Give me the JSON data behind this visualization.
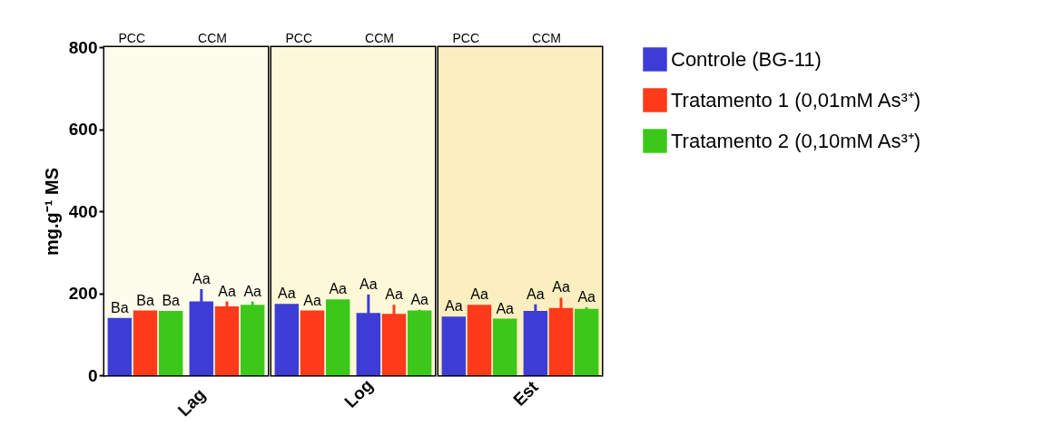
{
  "chart_data": [
    {
      "type": "bar",
      "xlabel": "Lag",
      "ylabel": "mg.g⁻¹ MS",
      "categories": [
        "PCC",
        "CCM"
      ],
      "ylim": [
        0,
        800
      ],
      "yticks": [
        0,
        200,
        400,
        600,
        800
      ],
      "bands": [
        {
          "axis": "y",
          "from": 0,
          "to": 800,
          "color": "#fefdeb"
        }
      ],
      "series": [
        {
          "color": "#3d3dd6",
          "values": [
            140,
            180
          ],
          "errors": [
            null,
            30
          ],
          "value_labels": [
            "Ba",
            "Aa"
          ]
        },
        {
          "color": "#ff3a1a",
          "values": [
            158,
            168
          ],
          "errors": [
            null,
            12
          ],
          "value_labels": [
            "Ba",
            "Aa"
          ]
        },
        {
          "color": "#3cc81a",
          "values": [
            157,
            172
          ],
          "errors": [
            null,
            8
          ],
          "value_labels": [
            "Ba",
            "Aa"
          ]
        }
      ]
    },
    {
      "type": "bar",
      "xlabel": "Log",
      "categories": [
        "PCC",
        "CCM"
      ],
      "ylim": [
        0,
        800
      ],
      "yticks": [
        0,
        200,
        400,
        600,
        800
      ],
      "tick_labels": "x",
      "bands": [
        {
          "axis": "y",
          "from": 0,
          "to": 800,
          "color": "#fdf9d8"
        }
      ],
      "series": [
        {
          "color": "#3d3dd6",
          "values": [
            174,
            152
          ],
          "errors": [
            null,
            45
          ],
          "value_labels": [
            "Aa",
            "Aa"
          ]
        },
        {
          "color": "#ff3a1a",
          "values": [
            158,
            150
          ],
          "errors": [
            null,
            22
          ],
          "value_labels": [
            "Aa",
            "Aa"
          ]
        },
        {
          "color": "#3cc81a",
          "values": [
            185,
            158
          ],
          "errors": [
            null,
            2
          ],
          "value_labels": [
            "Aa",
            "Aa"
          ]
        }
      ]
    },
    {
      "type": "bar",
      "xlabel": "Est",
      "categories": [
        "PCC",
        "CCM"
      ],
      "ylim": [
        0,
        800
      ],
      "yticks": [
        0,
        200,
        400,
        600,
        800
      ],
      "tick_labels": "x",
      "legend": "right",
      "bands": [
        {
          "axis": "y",
          "from": 0,
          "to": 800,
          "color": "#fbeec0"
        }
      ],
      "series": [
        {
          "name": "Controle (BG-11)",
          "color": "#3d3dd6",
          "values": [
            143,
            157
          ],
          "errors": [
            null,
            16
          ],
          "value_labels": [
            "Aa",
            "Aa"
          ]
        },
        {
          "name": "Tratamento 1 (0,01mM As³⁺)",
          "color": "#ff3a1a",
          "values": [
            172,
            164
          ],
          "errors": [
            null,
            25
          ],
          "value_labels": [
            "Aa",
            "Aa"
          ]
        },
        {
          "name": "Tratamento 2 (0,10mM As³⁺)",
          "color": "#3cc81a",
          "values": [
            138,
            162
          ],
          "errors": [
            null,
            4
          ],
          "value_labels": [
            "Aa",
            "Aa"
          ]
        }
      ]
    }
  ]
}
